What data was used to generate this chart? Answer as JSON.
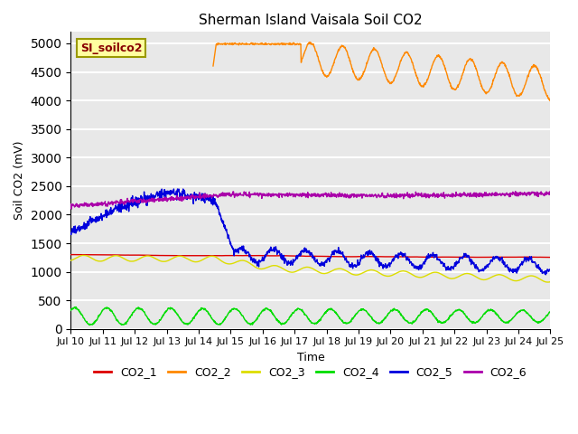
{
  "title": "Sherman Island Vaisala Soil CO2",
  "ylabel": "Soil CO2 (mV)",
  "xlabel": "Time",
  "ylim": [
    0,
    5200
  ],
  "yticks": [
    0,
    500,
    1000,
    1500,
    2000,
    2500,
    3000,
    3500,
    4000,
    4500,
    5000
  ],
  "xtick_labels": [
    "Jul 10",
    "Jul 11",
    "Jul 12",
    "Jul 13",
    "Jul 14",
    "Jul 15",
    "Jul 16",
    "Jul 17",
    "Jul 18",
    "Jul 19",
    "Jul 20",
    "Jul 21",
    "Jul 22",
    "Jul 23",
    "Jul 24",
    "Jul 25"
  ],
  "legend_label": "SI_soilco2",
  "legend_box_facecolor": "#ffffa0",
  "legend_box_edgecolor": "#999900",
  "bg_color": "#e8e8e8",
  "grid_color": "#ffffff",
  "colors": {
    "CO2_1": "#dd0000",
    "CO2_2": "#ff8800",
    "CO2_3": "#dddd00",
    "CO2_4": "#00dd00",
    "CO2_5": "#0000dd",
    "CO2_6": "#aa00aa"
  },
  "linewidth": 1.0
}
